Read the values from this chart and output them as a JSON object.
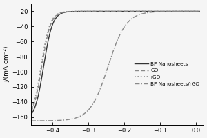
{
  "title": "",
  "xlabel": "",
  "ylabel": "j/(mA cm⁻²)",
  "xlim": [
    -0.46,
    0.02
  ],
  "ylim": [
    -170,
    -10
  ],
  "xticks": [
    -0.4,
    -0.3,
    -0.2,
    -0.1,
    0.0
  ],
  "yticks": [
    -160,
    -140,
    -120,
    -100,
    -80,
    -60,
    -40,
    -20
  ],
  "background_color": "#f5f5f5",
  "legend_entries": [
    "BP Nanosheets",
    "GO",
    "rGO",
    "BP Nanosheets/rGO"
  ],
  "font_size": 7,
  "curves": {
    "bp_nanosheets": {
      "onset": -0.425,
      "steepness": 80,
      "plateau": -20,
      "amplitude": -145,
      "color": "#333333",
      "linestyle": "-",
      "linewidth": 1.0
    },
    "go": {
      "onset": -0.43,
      "steepness": 80,
      "plateau": -20,
      "amplitude": -145,
      "color": "#888888",
      "linestyle": "--",
      "linewidth": 1.0
    },
    "rgo": {
      "onset": -0.432,
      "steepness": 80,
      "plateau": -20,
      "amplitude": -145,
      "color": "#888888",
      "linestyle": ":",
      "linewidth": 1.2
    },
    "bp_rgo": {
      "onset": -0.245,
      "steepness": 40,
      "plateau": -20,
      "amplitude": -145,
      "color": "#888888",
      "linestyle": "-.",
      "linewidth": 1.0
    }
  }
}
